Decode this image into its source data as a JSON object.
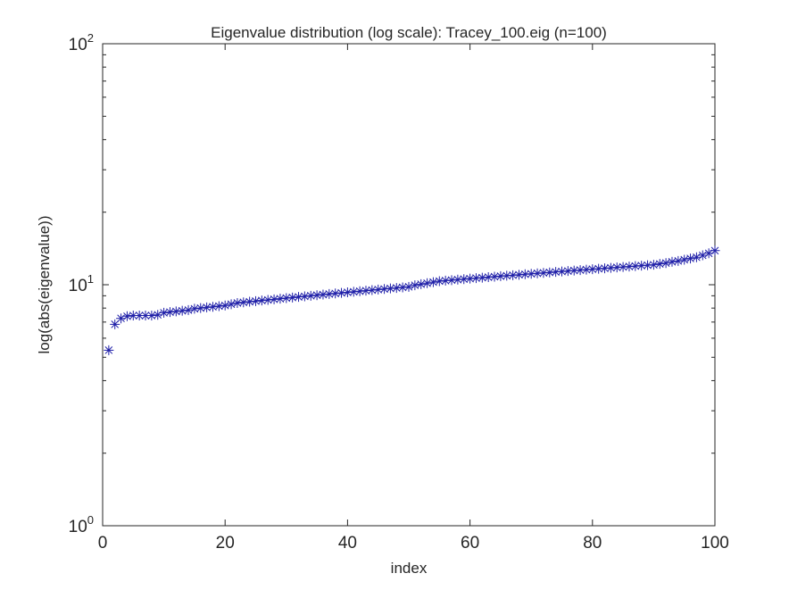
{
  "chart_data": {
    "type": "scatter",
    "title": "Eigenvalue distribution (log scale): Tracey_100.eig (n=100)",
    "xlabel": "index",
    "ylabel": "log(abs(eigenvalue))",
    "xlim": [
      0,
      100
    ],
    "ylim": [
      1,
      100
    ],
    "yscale": "log",
    "grid": false,
    "marker": "asterisk",
    "marker_color": "#1f1fa8",
    "axis_color": "#262626",
    "x_ticks": [
      {
        "value": 0,
        "label": "0"
      },
      {
        "value": 20,
        "label": "20"
      },
      {
        "value": 40,
        "label": "40"
      },
      {
        "value": 60,
        "label": "60"
      },
      {
        "value": 80,
        "label": "80"
      },
      {
        "value": 100,
        "label": "100"
      }
    ],
    "y_ticks": [
      {
        "value": 1,
        "base": "10",
        "exp": "0"
      },
      {
        "value": 10,
        "base": "10",
        "exp": "1"
      },
      {
        "value": 100,
        "base": "10",
        "exp": "2"
      }
    ],
    "x": [
      1,
      2,
      3,
      4,
      5,
      6,
      7,
      8,
      9,
      10,
      11,
      12,
      13,
      14,
      15,
      16,
      17,
      18,
      19,
      20,
      21,
      22,
      23,
      24,
      25,
      26,
      27,
      28,
      29,
      30,
      31,
      32,
      33,
      34,
      35,
      36,
      37,
      38,
      39,
      40,
      41,
      42,
      43,
      44,
      45,
      46,
      47,
      48,
      49,
      50,
      51,
      52,
      53,
      54,
      55,
      56,
      57,
      58,
      59,
      60,
      61,
      62,
      63,
      64,
      65,
      66,
      67,
      68,
      69,
      70,
      71,
      72,
      73,
      74,
      75,
      76,
      77,
      78,
      79,
      80,
      81,
      82,
      83,
      84,
      85,
      86,
      87,
      88,
      89,
      90,
      91,
      92,
      93,
      94,
      95,
      96,
      97,
      98,
      99,
      100
    ],
    "y": [
      5.35,
      6.85,
      7.25,
      7.4,
      7.45,
      7.45,
      7.45,
      7.45,
      7.5,
      7.65,
      7.7,
      7.75,
      7.8,
      7.85,
      7.95,
      8.0,
      8.05,
      8.1,
      8.15,
      8.2,
      8.3,
      8.4,
      8.45,
      8.5,
      8.55,
      8.6,
      8.65,
      8.7,
      8.75,
      8.8,
      8.85,
      8.9,
      8.95,
      9.0,
      9.05,
      9.1,
      9.15,
      9.2,
      9.25,
      9.3,
      9.35,
      9.4,
      9.45,
      9.5,
      9.55,
      9.6,
      9.65,
      9.7,
      9.75,
      9.8,
      9.95,
      10.05,
      10.15,
      10.25,
      10.35,
      10.4,
      10.45,
      10.5,
      10.55,
      10.6,
      10.65,
      10.7,
      10.75,
      10.8,
      10.85,
      10.9,
      10.95,
      11.0,
      11.05,
      11.1,
      11.15,
      11.2,
      11.25,
      11.3,
      11.35,
      11.4,
      11.45,
      11.5,
      11.55,
      11.6,
      11.65,
      11.7,
      11.75,
      11.8,
      11.85,
      11.9,
      11.95,
      12.0,
      12.05,
      12.1,
      12.2,
      12.3,
      12.45,
      12.55,
      12.7,
      12.85,
      13.0,
      13.25,
      13.5,
      13.85
    ]
  }
}
